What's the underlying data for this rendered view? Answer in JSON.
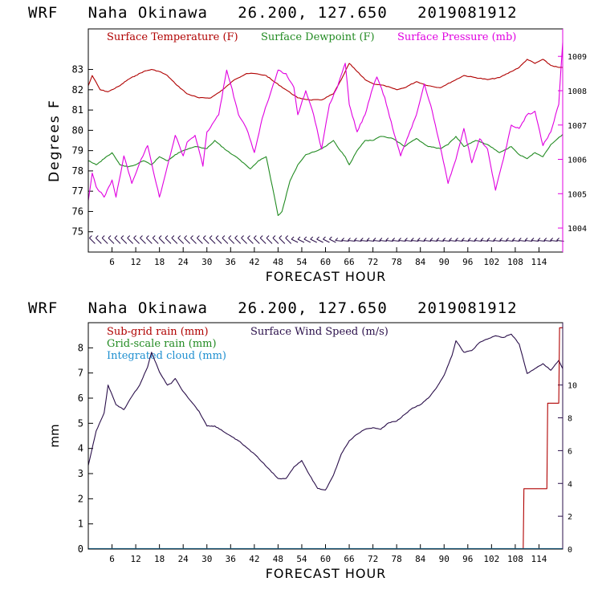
{
  "page": {
    "background": "#ffffff"
  },
  "chart_data": [
    {
      "type": "line",
      "id": "chart1",
      "title": "WRF   Naha Okinawa   26.200, 127.650   2019081912",
      "xlabel": "FORECAST HOUR",
      "ylabel": "Degrees F",
      "xlim": [
        0,
        120
      ],
      "ylim_left": [
        74,
        85
      ],
      "ylim_right": [
        1003.3,
        1009.8
      ],
      "x_ticks": [
        6,
        12,
        18,
        24,
        30,
        36,
        42,
        48,
        54,
        60,
        66,
        72,
        78,
        84,
        90,
        96,
        102,
        108,
        114
      ],
      "x_tick_labels": [
        "6",
        "12",
        "18",
        "24",
        "30",
        "36",
        "42",
        "48",
        "54",
        "60",
        "66",
        "72",
        "78",
        "84",
        "90",
        "96",
        "102",
        "108",
        "114"
      ],
      "y_left_ticks": [
        75,
        76,
        77,
        78,
        79,
        80,
        81,
        82,
        83
      ],
      "y_left_tick_labels": [
        "75",
        "76",
        "77",
        "78",
        "79",
        "80",
        "81",
        "82",
        "83"
      ],
      "y_right_ticks": [
        1004,
        1005,
        1006,
        1007,
        1008,
        1009
      ],
      "y_right_tick_labels": [
        "1004",
        "1005",
        "1006",
        "1007",
        "1008",
        "1009"
      ],
      "legend": [
        {
          "label": "Surface Temperature (F)",
          "color": "#b00000"
        },
        {
          "label": "Surface Dewpoint (F)",
          "color": "#228b22"
        },
        {
          "label": "Surface Pressure (mb)",
          "color": "#e000e0"
        }
      ],
      "series": [
        {
          "name": "Surface Temperature (F)",
          "color": "#b00000",
          "axis": "left",
          "x": [
            0,
            1,
            3,
            5,
            8,
            10,
            12,
            14,
            16,
            18,
            20,
            22,
            25,
            28,
            31,
            34,
            37,
            40,
            42,
            45,
            47,
            50,
            53,
            56,
            59,
            62,
            64,
            66,
            68,
            70,
            72,
            75,
            78,
            80,
            83,
            86,
            89,
            92,
            95,
            98,
            101,
            104,
            107,
            109,
            111,
            113,
            115,
            117,
            119,
            120
          ],
          "y": [
            82.2,
            82.7,
            82.0,
            81.9,
            82.2,
            82.5,
            82.7,
            82.9,
            83.0,
            82.9,
            82.7,
            82.3,
            81.8,
            81.6,
            81.6,
            82.0,
            82.5,
            82.8,
            82.8,
            82.7,
            82.4,
            82.0,
            81.6,
            81.5,
            81.5,
            81.8,
            82.5,
            83.3,
            82.9,
            82.5,
            82.3,
            82.2,
            82.0,
            82.1,
            82.4,
            82.2,
            82.1,
            82.4,
            82.7,
            82.6,
            82.5,
            82.6,
            82.9,
            83.1,
            83.5,
            83.3,
            83.5,
            83.2,
            83.1,
            83.1
          ]
        },
        {
          "name": "Surface Dewpoint (F)",
          "color": "#228b22",
          "axis": "left",
          "x": [
            0,
            2,
            4,
            6,
            8,
            10,
            12,
            14,
            16,
            18,
            20,
            22,
            24,
            27,
            30,
            32,
            35,
            38,
            41,
            43,
            45,
            47,
            48,
            49,
            51,
            53,
            55,
            58,
            60,
            62,
            63,
            65,
            66,
            68,
            70,
            72,
            74,
            77,
            80,
            83,
            86,
            89,
            91,
            93,
            95,
            98,
            101,
            104,
            107,
            109,
            111,
            113,
            115,
            117,
            120
          ],
          "y": [
            78.5,
            78.3,
            78.6,
            78.9,
            78.3,
            78.2,
            78.3,
            78.5,
            78.3,
            78.7,
            78.5,
            78.8,
            79.0,
            79.2,
            79.1,
            79.5,
            79.0,
            78.6,
            78.1,
            78.5,
            78.7,
            76.8,
            75.8,
            76.0,
            77.5,
            78.3,
            78.8,
            79.0,
            79.2,
            79.5,
            79.2,
            78.7,
            78.3,
            79.0,
            79.5,
            79.5,
            79.7,
            79.6,
            79.2,
            79.6,
            79.2,
            79.1,
            79.3,
            79.7,
            79.2,
            79.5,
            79.3,
            78.9,
            79.2,
            78.8,
            78.6,
            78.9,
            78.7,
            79.3,
            79.8
          ]
        },
        {
          "name": "Surface Pressure (mb)",
          "color": "#e000e0",
          "axis": "right",
          "x": [
            0,
            1,
            2,
            4,
            6,
            7,
            9,
            11,
            13,
            15,
            16,
            18,
            20,
            22,
            24,
            25,
            27,
            29,
            30,
            33,
            35,
            36,
            38,
            40,
            42,
            44,
            46,
            48,
            50,
            52,
            53,
            55,
            57,
            59,
            61,
            63,
            65,
            66,
            68,
            70,
            72,
            73,
            75,
            77,
            79,
            81,
            83,
            85,
            87,
            89,
            91,
            93,
            95,
            97,
            99,
            101,
            103,
            105,
            107,
            109,
            111,
            113,
            115,
            117,
            119,
            120
          ],
          "y": [
            1004.8,
            1005.6,
            1005.2,
            1004.9,
            1005.4,
            1004.9,
            1006.1,
            1005.3,
            1005.9,
            1006.4,
            1005.9,
            1004.9,
            1005.8,
            1006.7,
            1006.1,
            1006.5,
            1006.7,
            1005.8,
            1006.8,
            1007.3,
            1008.6,
            1008.2,
            1007.3,
            1006.9,
            1006.2,
            1007.2,
            1007.9,
            1008.6,
            1008.5,
            1008.1,
            1007.3,
            1008.0,
            1007.3,
            1006.3,
            1007.6,
            1008.1,
            1008.8,
            1007.6,
            1006.8,
            1007.3,
            1008.1,
            1008.4,
            1007.8,
            1006.9,
            1006.1,
            1006.7,
            1007.3,
            1008.2,
            1007.4,
            1006.4,
            1005.3,
            1006.0,
            1006.9,
            1005.9,
            1006.6,
            1006.3,
            1005.1,
            1006.0,
            1007.0,
            1006.9,
            1007.3,
            1007.4,
            1006.4,
            1006.8,
            1007.6,
            1009.4
          ]
        }
      ],
      "wind_barbs": "row of wind barbs along the bottom of the temperature panel"
    },
    {
      "type": "line",
      "id": "chart2",
      "title": "WRF   Naha Okinawa   26.200, 127.650   2019081912",
      "xlabel": "FORECAST HOUR",
      "ylabel": "mm",
      "xlim": [
        0,
        120
      ],
      "ylim_left": [
        0,
        9
      ],
      "ylim_right": [
        0,
        13.8
      ],
      "x_ticks": [
        6,
        12,
        18,
        24,
        30,
        36,
        42,
        48,
        54,
        60,
        66,
        72,
        78,
        84,
        90,
        96,
        102,
        108,
        114
      ],
      "x_tick_labels": [
        "6",
        "12",
        "18",
        "24",
        "30",
        "36",
        "42",
        "48",
        "54",
        "60",
        "66",
        "72",
        "78",
        "84",
        "90",
        "96",
        "102",
        "108",
        "114"
      ],
      "y_left_ticks": [
        0,
        1,
        2,
        3,
        4,
        5,
        6,
        7,
        8
      ],
      "y_left_tick_labels": [
        "0",
        "1",
        "2",
        "3",
        "4",
        "5",
        "6",
        "7",
        "8"
      ],
      "y_right_ticks": [
        0,
        2,
        4,
        6,
        8,
        10
      ],
      "y_right_tick_labels": [
        "0",
        "2",
        "4",
        "6",
        "8",
        "10"
      ],
      "legend": [
        {
          "label": "Sub-grid rain (mm)",
          "color": "#b00000"
        },
        {
          "label": "Surface Wind Speed (m/s)",
          "color": "#2a0f4a"
        },
        {
          "label": "Grid-scale rain (mm)",
          "color": "#228b22"
        },
        {
          "label": "Integrated cloud (mm)",
          "color": "#1e8fd0"
        }
      ],
      "series": [
        {
          "name": "Surface Wind Speed (m/s)",
          "color": "#2a0f4a",
          "axis": "right",
          "x": [
            0,
            2,
            4,
            5,
            7,
            9,
            11,
            13,
            15,
            16,
            18,
            20,
            21,
            22,
            24,
            26,
            28,
            30,
            32,
            34,
            36,
            38,
            40,
            42,
            44,
            46,
            48,
            50,
            52,
            54,
            56,
            58,
            60,
            62,
            64,
            66,
            68,
            70,
            72,
            74,
            76,
            78,
            80,
            82,
            84,
            86,
            88,
            90,
            92,
            93,
            95,
            97,
            99,
            101,
            103,
            105,
            107,
            109,
            111,
            113,
            115,
            117,
            119,
            120
          ],
          "y": [
            5.1,
            7.2,
            8.3,
            10.0,
            8.8,
            8.5,
            9.3,
            10.0,
            11.1,
            12.0,
            10.8,
            10.0,
            10.1,
            10.4,
            9.6,
            9.0,
            8.4,
            7.5,
            7.5,
            7.2,
            6.9,
            6.6,
            6.2,
            5.8,
            5.3,
            4.8,
            4.3,
            4.3,
            5.0,
            5.4,
            4.5,
            3.7,
            3.6,
            4.5,
            5.8,
            6.6,
            7.0,
            7.3,
            7.4,
            7.3,
            7.7,
            7.8,
            8.2,
            8.6,
            8.8,
            9.2,
            9.8,
            10.6,
            11.8,
            12.7,
            12.0,
            12.1,
            12.6,
            12.8,
            13.0,
            12.9,
            13.1,
            12.5,
            10.7,
            11.0,
            11.3,
            10.9,
            11.5,
            11.0
          ]
        },
        {
          "name": "Sub-grid rain (mm)",
          "color": "#b00000",
          "axis": "left",
          "x": [
            0,
            109,
            110,
            110.2,
            116,
            116.2,
            119,
            119.2,
            120
          ],
          "y": [
            0,
            0,
            0,
            2.4,
            2.4,
            5.8,
            5.8,
            8.8,
            8.8
          ]
        },
        {
          "name": "Grid-scale rain (mm)",
          "color": "#228b22",
          "axis": "left",
          "x": [
            0,
            120
          ],
          "y": [
            0,
            0
          ]
        },
        {
          "name": "Integrated cloud (mm)",
          "color": "#1e8fd0",
          "axis": "left",
          "x": [
            0,
            120
          ],
          "y": [
            0.02,
            0.02
          ]
        }
      ]
    }
  ]
}
